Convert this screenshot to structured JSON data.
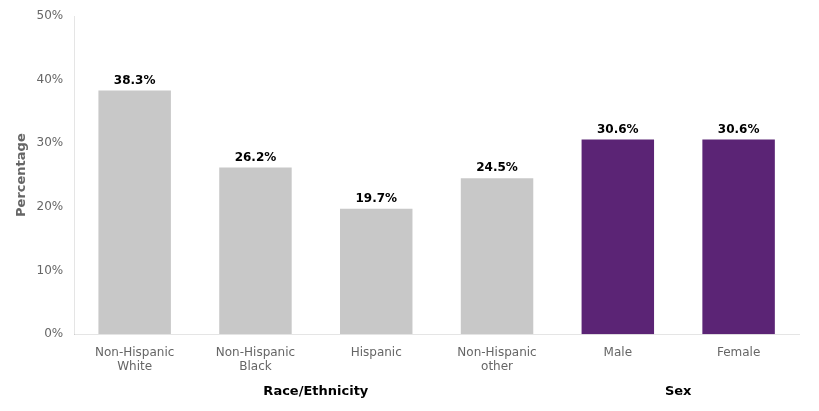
{
  "chart_data": {
    "type": "bar",
    "categories": [
      "Non-Hispanic\nWhite",
      "Non-Hispanic\nBlack",
      "Hispanic",
      "Non-Hispanic\nother",
      "Male",
      "Female"
    ],
    "values": [
      38.3,
      26.2,
      19.7,
      24.5,
      30.6,
      30.6
    ],
    "value_labels": [
      "38.3%",
      "26.2%",
      "19.7%",
      "24.5%",
      "30.6%",
      "30.6%"
    ],
    "colors": [
      "#c8c8c8",
      "#c8c8c8",
      "#c8c8c8",
      "#c8c8c8",
      "#5b2475",
      "#5b2475"
    ],
    "ylabel": "Percentage",
    "ylim": [
      0,
      50
    ],
    "yticks": [
      {
        "value": 0,
        "label": "0%"
      },
      {
        "value": 10,
        "label": "10%"
      },
      {
        "value": 20,
        "label": "20%"
      },
      {
        "value": 30,
        "label": "30%"
      },
      {
        "value": 40,
        "label": "40%"
      },
      {
        "value": 50,
        "label": "50%"
      }
    ],
    "grid": false,
    "annotations": [
      {
        "text": "Race/Ethnicity",
        "span": [
          "Non-Hispanic\nWhite",
          "Non-Hispanic\nother"
        ]
      },
      {
        "text": "Sex",
        "span": [
          "Male",
          "Female"
        ]
      }
    ]
  }
}
